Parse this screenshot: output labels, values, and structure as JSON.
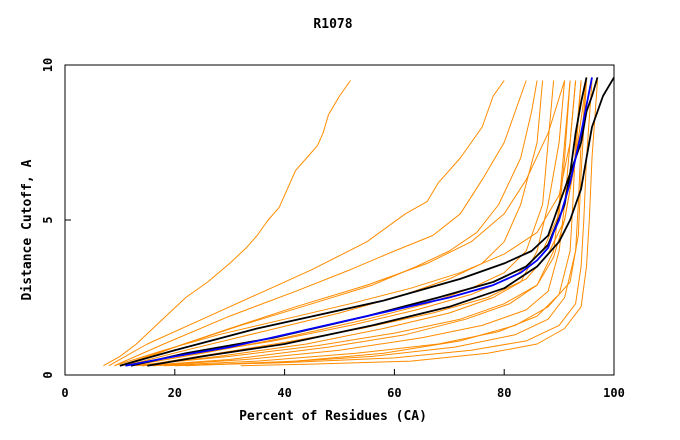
{
  "chart_data": {
    "type": "line",
    "title": "R1078",
    "xlabel": "Percent of Residues (CA)",
    "ylabel": "Distance Cutoff, A",
    "xlim": [
      0,
      100
    ],
    "ylim": [
      0,
      10
    ],
    "xticks": [
      0,
      20,
      40,
      60,
      80,
      100
    ],
    "yticks": [
      0,
      5,
      10
    ],
    "grid": false,
    "colors": {
      "orange": "#ff8c00",
      "black": "#000000",
      "blue": "#0000ff"
    },
    "series": [
      {
        "color": "orange",
        "x": [
          7,
          10,
          13,
          16,
          19,
          22,
          26,
          30,
          33,
          35,
          37,
          39,
          40,
          41,
          42,
          44,
          46,
          47,
          48,
          50,
          52
        ],
        "y": [
          0.3,
          0.6,
          1.0,
          1.5,
          2.0,
          2.5,
          3.0,
          3.6,
          4.1,
          4.5,
          5.0,
          5.4,
          5.8,
          6.2,
          6.6,
          7.0,
          7.4,
          7.8,
          8.4,
          9.0,
          9.5
        ]
      },
      {
        "color": "orange",
        "x": [
          8,
          15,
          25,
          35,
          45,
          55,
          62,
          66,
          68,
          72,
          76,
          78,
          80
        ],
        "y": [
          0.3,
          1.0,
          1.8,
          2.6,
          3.4,
          4.3,
          5.2,
          5.6,
          6.2,
          7.0,
          8.0,
          9.0,
          9.5
        ]
      },
      {
        "color": "orange",
        "x": [
          9,
          18,
          30,
          42,
          52,
          60,
          67,
          72,
          76,
          80,
          82,
          84
        ],
        "y": [
          0.3,
          1.0,
          1.9,
          2.7,
          3.4,
          4.0,
          4.5,
          5.2,
          6.3,
          7.5,
          8.5,
          9.5
        ]
      },
      {
        "color": "orange",
        "x": [
          10,
          20,
          32,
          45,
          56,
          64,
          70,
          75,
          79,
          83,
          85,
          86
        ],
        "y": [
          0.3,
          0.9,
          1.6,
          2.3,
          2.9,
          3.5,
          4.0,
          4.6,
          5.5,
          7.0,
          8.5,
          9.5
        ]
      },
      {
        "color": "orange",
        "x": [
          11,
          22,
          36,
          50,
          62,
          70,
          76,
          80,
          83,
          86,
          87
        ],
        "y": [
          0.3,
          0.8,
          1.4,
          2.0,
          2.6,
          3.1,
          3.6,
          4.3,
          5.5,
          7.5,
          9.5
        ]
      },
      {
        "color": "orange",
        "x": [
          12,
          25,
          40,
          55,
          66,
          74,
          80,
          84,
          87,
          88,
          89
        ],
        "y": [
          0.3,
          0.7,
          1.2,
          1.8,
          2.3,
          2.8,
          3.3,
          4.0,
          5.5,
          7.5,
          9.5
        ]
      },
      {
        "color": "orange",
        "x": [
          13,
          28,
          44,
          58,
          70,
          78,
          83,
          86,
          88,
          90,
          91
        ],
        "y": [
          0.3,
          0.6,
          1.0,
          1.5,
          2.0,
          2.5,
          3.0,
          4.0,
          5.5,
          7.5,
          9.5
        ]
      },
      {
        "color": "orange",
        "x": [
          14,
          30,
          48,
          62,
          73,
          81,
          86,
          89,
          90,
          91,
          92
        ],
        "y": [
          0.3,
          0.5,
          0.9,
          1.3,
          1.8,
          2.3,
          2.9,
          4.0,
          5.5,
          7.5,
          9.5
        ]
      },
      {
        "color": "orange",
        "x": [
          15,
          33,
          50,
          65,
          76,
          84,
          88,
          90,
          91,
          92,
          93
        ],
        "y": [
          0.3,
          0.5,
          0.8,
          1.2,
          1.6,
          2.1,
          2.7,
          4.0,
          5.5,
          7.5,
          9.5
        ]
      },
      {
        "color": "orange",
        "x": [
          16,
          35,
          53,
          68,
          79,
          86,
          90,
          92,
          92.5,
          93,
          94
        ],
        "y": [
          0.3,
          0.45,
          0.7,
          1.0,
          1.4,
          1.9,
          2.6,
          4.0,
          5.5,
          7.5,
          9.5
        ]
      },
      {
        "color": "orange",
        "x": [
          18,
          38,
          56,
          71,
          82,
          88,
          91,
          93,
          93.5,
          94,
          95
        ],
        "y": [
          0.3,
          0.4,
          0.6,
          0.9,
          1.3,
          1.8,
          2.5,
          4.0,
          5.5,
          7.5,
          9.5
        ]
      },
      {
        "color": "orange",
        "x": [
          20,
          40,
          60,
          74,
          84,
          90,
          93,
          94,
          94.5,
          95,
          96
        ],
        "y": [
          0.3,
          0.4,
          0.55,
          0.8,
          1.1,
          1.6,
          2.3,
          3.5,
          5.0,
          7.0,
          9.5
        ]
      },
      {
        "color": "orange",
        "x": [
          32,
          45,
          63,
          77,
          86,
          91,
          94,
          95,
          95.5,
          96,
          97
        ],
        "y": [
          0.3,
          0.35,
          0.45,
          0.7,
          1.0,
          1.5,
          2.2,
          3.5,
          5.0,
          7.0,
          9.5
        ]
      },
      {
        "color": "orange",
        "x": [
          9,
          18,
          28,
          40,
          52,
          63,
          72,
          80,
          86,
          90,
          92,
          93
        ],
        "y": [
          0.3,
          0.8,
          1.3,
          1.8,
          2.3,
          2.8,
          3.3,
          3.9,
          4.6,
          5.8,
          7.5,
          9.5
        ]
      },
      {
        "color": "orange",
        "x": [
          10,
          24,
          38,
          52,
          64,
          74,
          82,
          87,
          90,
          91,
          92
        ],
        "y": [
          0.3,
          0.7,
          1.1,
          1.6,
          2.1,
          2.6,
          3.2,
          4.0,
          5.2,
          7.0,
          9.5
        ]
      },
      {
        "color": "orange",
        "x": [
          12,
          30,
          46,
          60,
          72,
          80,
          86,
          89,
          91,
          93,
          94
        ],
        "y": [
          0.3,
          0.6,
          0.95,
          1.35,
          1.8,
          2.3,
          2.9,
          3.8,
          5.0,
          7.0,
          9.5
        ]
      },
      {
        "color": "orange",
        "x": [
          22,
          42,
          58,
          72,
          82,
          88,
          92,
          93.5,
          94,
          95
        ],
        "y": [
          0.3,
          0.45,
          0.7,
          1.1,
          1.6,
          2.2,
          3.0,
          4.5,
          6.5,
          9.5
        ]
      },
      {
        "color": "orange",
        "x": [
          11,
          20,
          30,
          42,
          55,
          66,
          74,
          80,
          84,
          88,
          91
        ],
        "y": [
          0.3,
          0.9,
          1.5,
          2.2,
          2.9,
          3.6,
          4.3,
          5.2,
          6.3,
          7.8,
          9.5
        ]
      },
      {
        "color": "orange",
        "x": [
          14,
          26,
          40,
          54,
          67,
          77,
          84,
          88,
          91,
          93,
          95
        ],
        "y": [
          0.3,
          0.65,
          1.05,
          1.5,
          2.0,
          2.5,
          3.1,
          3.9,
          5.0,
          7.0,
          9.5
        ]
      },
      {
        "color": "black",
        "x": [
          10,
          20,
          35,
          58,
          72,
          80,
          85,
          88,
          90,
          92,
          94,
          95,
          96,
          97
        ],
        "y": [
          0.3,
          0.8,
          1.5,
          2.4,
          3.1,
          3.6,
          4.0,
          4.5,
          5.5,
          6.5,
          7.5,
          8.5,
          9.0,
          9.6
        ]
      },
      {
        "color": "black",
        "x": [
          12,
          22,
          38,
          55,
          68,
          78,
          84,
          88,
          91,
          92,
          93,
          94,
          95
        ],
        "y": [
          0.3,
          0.7,
          1.2,
          1.9,
          2.5,
          3.0,
          3.5,
          4.2,
          5.5,
          6.5,
          7.8,
          8.8,
          9.6
        ]
      },
      {
        "color": "black",
        "x": [
          15,
          25,
          40,
          56,
          70,
          80,
          86,
          90,
          92,
          94,
          95,
          96,
          97,
          98,
          99,
          100
        ],
        "y": [
          0.3,
          0.6,
          1.0,
          1.6,
          2.2,
          2.8,
          3.5,
          4.3,
          5.0,
          6.0,
          7.0,
          8.0,
          8.5,
          9.0,
          9.3,
          9.6
        ]
      },
      {
        "color": "blue",
        "x": [
          11,
          20,
          30,
          40,
          50,
          60,
          70,
          78,
          83,
          86,
          88,
          89,
          90,
          91,
          92,
          93,
          94,
          95,
          96
        ],
        "y": [
          0.3,
          0.6,
          0.9,
          1.3,
          1.7,
          2.1,
          2.5,
          2.9,
          3.3,
          3.7,
          4.1,
          4.6,
          5.0,
          5.6,
          6.2,
          7.0,
          7.8,
          8.7,
          9.6
        ]
      }
    ]
  }
}
